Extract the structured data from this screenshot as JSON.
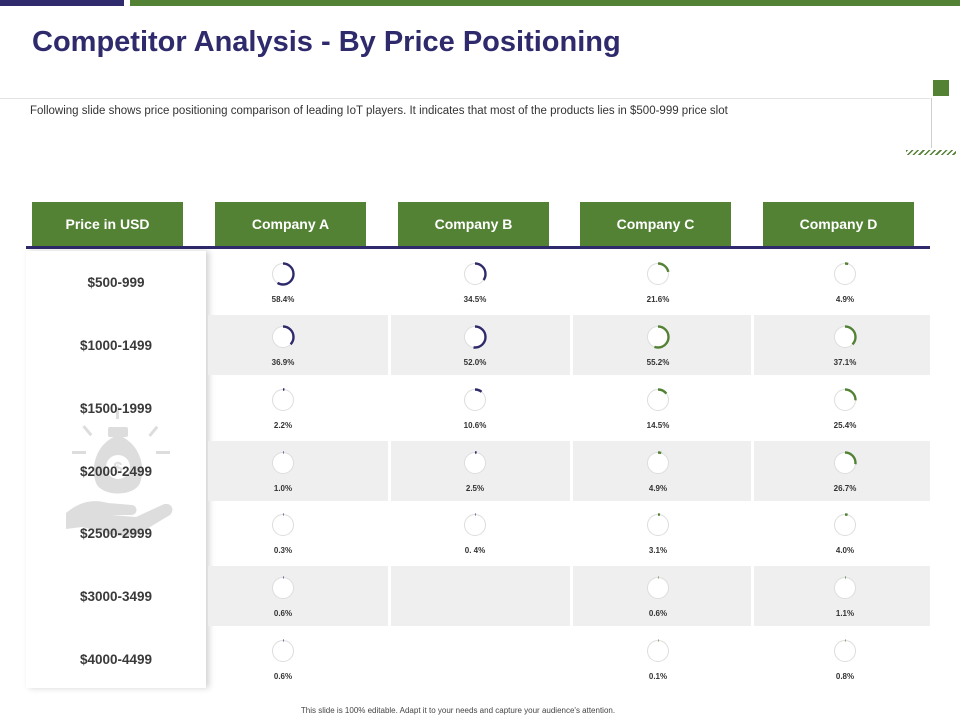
{
  "title": "Competitor Analysis - By Price Positioning",
  "subtitle": "Following slide shows price positioning comparison of leading IoT players. It indicates that most of the products lies in $500-999 price slot",
  "footer": "This slide is 100% editable. Adapt it to your needs and capture your audience's attention.",
  "colors": {
    "navy": "#2e2a6b",
    "green": "#548235",
    "track": "#dddddd"
  },
  "table": {
    "headers": [
      "Price in USD",
      "Company A",
      "Company B",
      "Company C",
      "Company D"
    ],
    "company_colors": [
      "#2e2a6b",
      "#2e2a6b",
      "#548235",
      "#548235"
    ],
    "rows": [
      {
        "price": "$500-999",
        "cells": [
          {
            "label": "58.4%",
            "value": 58.4
          },
          {
            "label": "34.5%",
            "value": 34.5
          },
          {
            "label": "21.6%",
            "value": 21.6
          },
          {
            "label": "4.9%",
            "value": 4.9
          }
        ]
      },
      {
        "price": "$1000-1499",
        "cells": [
          {
            "label": "36.9%",
            "value": 36.9
          },
          {
            "label": "52.0%",
            "value": 52.0
          },
          {
            "label": "55.2%",
            "value": 55.2
          },
          {
            "label": "37.1%",
            "value": 37.1
          }
        ]
      },
      {
        "price": "$1500-1999",
        "cells": [
          {
            "label": "2.2%",
            "value": 2.2
          },
          {
            "label": "10.6%",
            "value": 10.6
          },
          {
            "label": "14.5%",
            "value": 14.5
          },
          {
            "label": "25.4%",
            "value": 25.4
          }
        ]
      },
      {
        "price": "$2000-2499",
        "cells": [
          {
            "label": "1.0%",
            "value": 1.0
          },
          {
            "label": "2.5%",
            "value": 2.5
          },
          {
            "label": "4.9%",
            "value": 4.9
          },
          {
            "label": "26.7%",
            "value": 26.7
          }
        ]
      },
      {
        "price": "$2500-2999",
        "cells": [
          {
            "label": "0.3%",
            "value": 0.3
          },
          {
            "label": "0. 4%",
            "value": 0.4
          },
          {
            "label": "3.1%",
            "value": 3.1
          },
          {
            "label": "4.0%",
            "value": 4.0
          }
        ]
      },
      {
        "price": "$3000-3499",
        "cells": [
          {
            "label": "0.6%",
            "value": 0.6
          },
          null,
          {
            "label": "0.6%",
            "value": 0.6
          },
          {
            "label": "1.1%",
            "value": 1.1
          }
        ]
      },
      {
        "price": "$4000-4499",
        "cells": [
          {
            "label": "0.6%",
            "value": 0.6
          },
          null,
          {
            "label": "0.1%",
            "value": 0.1
          },
          {
            "label": "0.8%",
            "value": 0.8
          }
        ]
      }
    ]
  }
}
